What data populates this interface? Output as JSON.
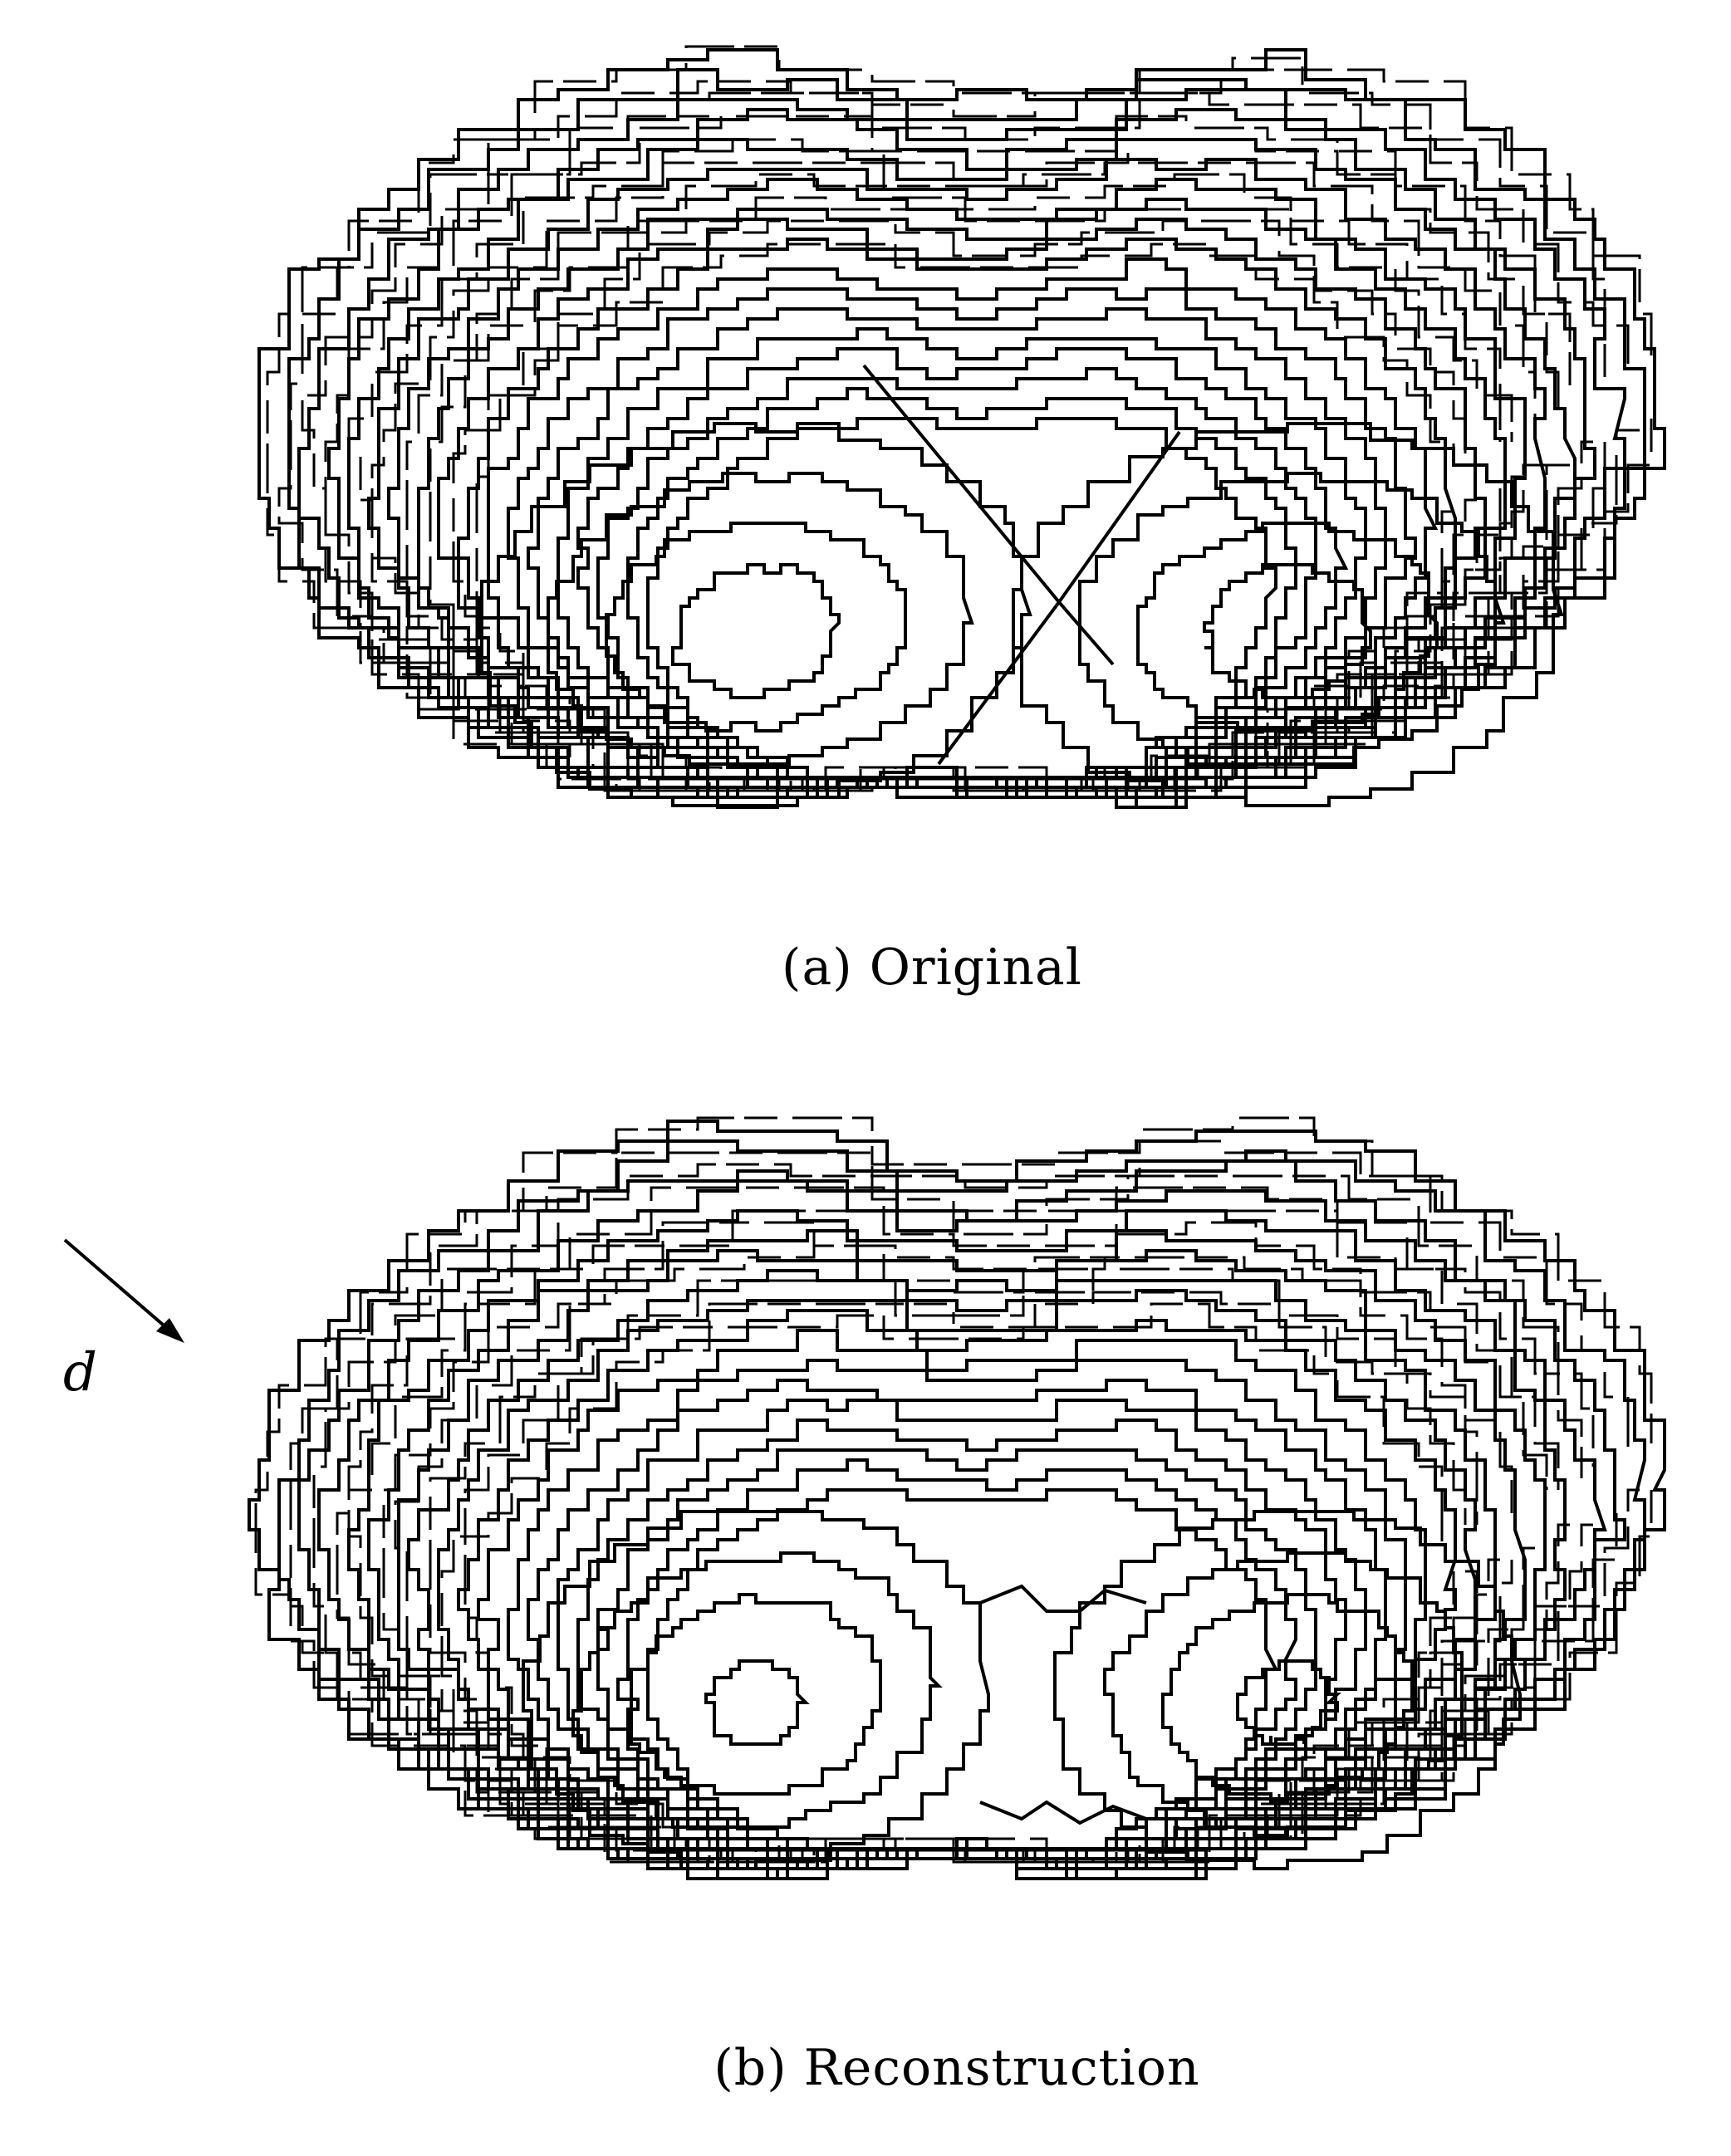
{
  "figure": {
    "panels": [
      {
        "id": "a",
        "caption": "(a) Original",
        "variant": "original"
      },
      {
        "id": "b",
        "caption": "(b) Reconstruction",
        "variant": "reconstruction"
      }
    ],
    "direction_label": "d",
    "line_color": "#000000",
    "background_color": "#ffffff"
  }
}
